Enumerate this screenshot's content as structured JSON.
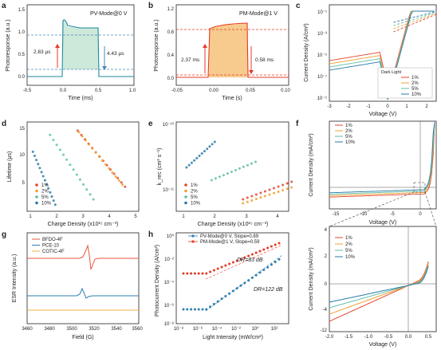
{
  "colors": {
    "c1": "#e3462f",
    "c2": "#f0a030",
    "c3": "#5dbfa6",
    "c4": "#2b7aa8",
    "green": "#33a86a",
    "red": "#e53a23",
    "blue": "#4b88b5",
    "bfdo": "#e8553b",
    "pce": "#2d7fb0",
    "cotic": "#f2b13b"
  },
  "panels": {
    "a": {
      "letter": "a",
      "label": "PV-Mode@0 V",
      "xlabel": "Time (ms)",
      "ylabel": "Photoresponse (a.u.)",
      "xticks": [
        "-0.5",
        "0.0",
        "0.5",
        "1.0"
      ],
      "yticks": [
        "0.0",
        "0.5",
        "1.0",
        "1.5"
      ],
      "rise": "2.83 μs",
      "fall": "4.43 μs"
    },
    "b": {
      "letter": "b",
      "label": "PM-Mode@1 V",
      "xlabel": "Time (s)",
      "ylabel": "Photoresponse (a.u.)",
      "xticks": [
        "-0.05",
        "0.00",
        "0.05",
        "0.10"
      ],
      "yticks": [
        "0.0",
        "0.4",
        "0.8",
        "1.2"
      ],
      "rise": "2.37 ms",
      "fall": "0.58 ms"
    },
    "c": {
      "letter": "c",
      "xlabel": "Voltage (V)",
      "ylabel": "Current Density (A/cm²)",
      "xticks": [
        "-3",
        "-2",
        "-1",
        "0",
        "1",
        "2"
      ],
      "yticks": [
        "10⁻¹",
        "10⁻³",
        "10⁻⁵",
        "10⁻⁷",
        "10⁻⁹"
      ],
      "legend_title": "Dark  Light",
      "legend": [
        "1%",
        "2%",
        "5%",
        "10%"
      ]
    },
    "d": {
      "letter": "d",
      "xlabel": "Charge Density (x10¹⁵ cm⁻³)",
      "ylabel": "Lifetime (μs)",
      "xticks": [
        "1",
        "2",
        "3",
        "4",
        "5"
      ],
      "yticks": [
        "5",
        "10",
        "15"
      ],
      "legend": [
        "1%",
        "2%",
        "5%",
        "10%"
      ]
    },
    "e": {
      "letter": "e",
      "xlabel": "Charge Density (x10¹⁵ cm⁻³)",
      "ylabel": "k_rec (cm³ s⁻¹)",
      "xticks": [
        "1",
        "2",
        "3",
        "4"
      ],
      "yticks": [
        "10⁻¹⁰",
        "10⁻¹¹"
      ],
      "legend": [
        "1%",
        "2%",
        "5%",
        "10%"
      ]
    },
    "f": {
      "letter": "f",
      "xlabel": "Voltage (V)",
      "ylabel": "Current Density (mA/cm²)",
      "xticks": [
        "-15",
        "-10",
        "-5",
        "0"
      ],
      "yticks": [
        "20",
        "10",
        "0",
        "-10"
      ],
      "legend": [
        "1%",
        "2%",
        "5%",
        "10%"
      ]
    },
    "f2": {
      "xlabel": "Voltage (V)",
      "ylabel": "Current Density (mA/cm²)",
      "xticks": [
        "-2.0",
        "-1.5",
        "-1.0",
        "-0.5",
        "0.0",
        "0.5"
      ],
      "yticks": [
        "4",
        "2",
        "0",
        "-2",
        "-4",
        "-6",
        "-8",
        "-10",
        "-12"
      ],
      "legend": [
        "1%",
        "2%",
        "5%",
        "10%"
      ]
    },
    "g": {
      "letter": "g",
      "xlabel": "Field (G)",
      "ylabel": "ESR Intensity (a.u.)",
      "xticks": [
        "3460",
        "3480",
        "3500",
        "3520",
        "3540",
        "3560"
      ],
      "legend": [
        "BFDO-4F",
        "PCE-10",
        "COTIC-4F"
      ]
    },
    "h": {
      "letter": "h",
      "xlabel": "Light Intensity (mW/cm²)",
      "ylabel": "Photocurrent Density (A/cm²)",
      "xticks": [
        "10⁻⁸",
        "10⁻⁶",
        "10⁻⁴",
        "10⁻²",
        "10⁰",
        "10²"
      ],
      "yticks": [
        "10⁰",
        "10⁻²",
        "10⁻⁴",
        "10⁻⁶",
        "10⁻⁸"
      ],
      "legend": [
        "PV-Mode@0 V, Slope=0.89",
        "PM-Mode@1 V, Slope=0.59"
      ],
      "dr1": "DR=83 dB",
      "dr2": "DR=122 dB"
    }
  },
  "chart_data": [
    {
      "type": "line",
      "panel": "a",
      "series": [
        {
          "name": "PV-Mode@0 V",
          "x": [
            -0.5,
            0,
            0.02,
            0.1,
            0.3,
            0.5,
            0.52,
            1.0
          ],
          "y": [
            0.03,
            1.25,
            1.05,
            0.95,
            0.9,
            0.88,
            0.05,
            0.03
          ]
        }
      ],
      "xlim": [
        -0.5,
        1.0
      ],
      "ylim": [
        -0.1,
        1.65
      ]
    },
    {
      "type": "line",
      "panel": "b",
      "series": [
        {
          "name": "PM-Mode@1 V",
          "x": [
            -0.05,
            0,
            0.01,
            0.05,
            0.06,
            0.1
          ],
          "y": [
            0.1,
            0.85,
            0.95,
            1.0,
            0.1,
            0.1
          ]
        }
      ],
      "xlim": [
        -0.05,
        0.1
      ],
      "ylim": [
        -0.08,
        1.25
      ]
    },
    {
      "type": "line",
      "panel": "c",
      "series": [
        {
          "name": "1%"
        },
        {
          "name": "2%"
        },
        {
          "name": "5%"
        },
        {
          "name": "10%"
        }
      ],
      "xlim": [
        -3,
        2.5
      ],
      "ylog": true
    },
    {
      "type": "scatter",
      "panel": "d",
      "series": [
        {
          "name": "1%",
          "x": [
            2.8,
            3.5,
            4.5
          ],
          "y": [
            15.5,
            10.5,
            5.5
          ]
        },
        {
          "name": "2%",
          "x": [
            2.8,
            3.5,
            4.5
          ],
          "y": [
            15.8,
            10.8,
            5.8
          ]
        },
        {
          "name": "5%",
          "x": [
            1.8,
            2.6,
            3.6
          ],
          "y": [
            15,
            9.5,
            3
          ]
        },
        {
          "name": "10%",
          "x": [
            1.1,
            1.4,
            1.9
          ],
          "y": [
            12,
            8,
            2.2
          ]
        }
      ],
      "xlim": [
        1,
        5
      ],
      "ylim": [
        1,
        17
      ]
    },
    {
      "type": "scatter",
      "panel": "e",
      "series": [
        {
          "name": "1%",
          "x": [
            2.9,
            4.4
          ],
          "y": [
            9e-12,
            1.3e-11
          ]
        },
        {
          "name": "2%",
          "x": [
            2.9,
            4.4
          ],
          "y": [
            8e-12,
            1.2e-11
          ]
        },
        {
          "name": "5%",
          "x": [
            1.8,
            3.5
          ],
          "y": [
            1.3e-11,
            2.5e-11
          ]
        },
        {
          "name": "10%",
          "x": [
            1.1,
            2.0
          ],
          "y": [
            2.6e-11,
            5e-11
          ]
        }
      ],
      "ylog": true
    },
    {
      "type": "line",
      "panel": "f",
      "series": [
        {
          "name": "1%"
        },
        {
          "name": "2%"
        },
        {
          "name": "5%"
        },
        {
          "name": "10%"
        }
      ],
      "xlim": [
        -15,
        2
      ]
    },
    {
      "type": "line",
      "panel": "g",
      "series": [
        {
          "name": "BFDO-4F"
        },
        {
          "name": "PCE-10"
        },
        {
          "name": "COTIC-4F"
        }
      ],
      "xlim": [
        3460,
        3560
      ]
    },
    {
      "type": "scatter",
      "panel": "h",
      "series": [
        {
          "name": "PV-Mode@0 V",
          "slope": 0.89
        },
        {
          "name": "PM-Mode@1 V",
          "slope": 0.59
        }
      ],
      "xlog": true,
      "ylog": true
    }
  ]
}
